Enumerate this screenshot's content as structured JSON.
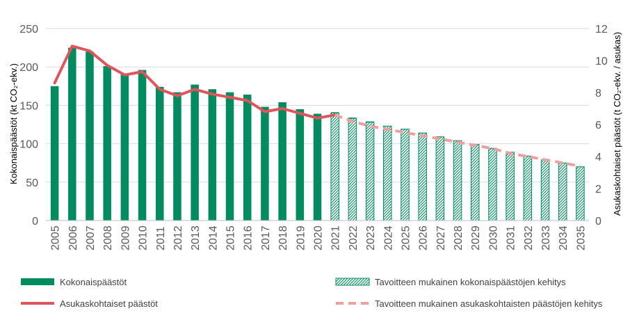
{
  "chart_data": {
    "type": "bar",
    "categories": [
      "2005",
      "2006",
      "2007",
      "2008",
      "2009",
      "2010",
      "2011",
      "2012",
      "2013",
      "2014",
      "2015",
      "2016",
      "2017",
      "2018",
      "2019",
      "2020",
      "2021",
      "2022",
      "2023",
      "2024",
      "2025",
      "2026",
      "2027",
      "2028",
      "2029",
      "2030",
      "2031",
      "2032",
      "2033",
      "2034",
      "2035"
    ],
    "y_left": {
      "label": "Kokonaispäästöt (kt CO₂-ekv.)",
      "min": 0,
      "max": 250,
      "ticks": [
        "0",
        "50",
        "100",
        "150",
        "200",
        "250"
      ]
    },
    "y_right": {
      "label": "Asukaskohtaiset päästöt (t CO₂-ekv. / asukas)",
      "min": 0,
      "max": 12,
      "ticks": [
        "0",
        "2",
        "4",
        "6",
        "8",
        "10",
        "12"
      ]
    },
    "series": [
      {
        "name": "Kokonaispäästöt",
        "kind": "bar",
        "axis": "left",
        "style": "solid",
        "color": "#008c5f",
        "values": [
          175,
          225,
          220,
          201,
          190,
          196,
          174,
          167,
          177,
          171,
          167,
          164,
          148,
          154,
          145,
          139,
          141,
          134,
          129,
          null,
          null,
          null,
          null,
          null,
          null,
          null,
          null,
          null,
          null,
          null,
          null
        ]
      },
      {
        "name": "Tavoitteen mukainen kokonaispäästöjen kehitys",
        "kind": "bar",
        "axis": "left",
        "style": "hatched",
        "color": "#008c5f",
        "values": [
          null,
          null,
          null,
          null,
          null,
          null,
          null,
          null,
          null,
          null,
          null,
          null,
          null,
          null,
          null,
          null,
          140,
          133,
          128,
          123,
          119,
          114,
          109,
          104,
          99,
          94,
          89,
          84,
          79,
          75,
          70
        ]
      },
      {
        "name": "Asukaskohtaiset päästöt",
        "kind": "line",
        "axis": "right",
        "style": "solid",
        "color": "#e0555a",
        "values": [
          8.6,
          10.9,
          10.6,
          9.7,
          9.1,
          9.3,
          8.2,
          7.8,
          8.2,
          7.9,
          7.7,
          7.5,
          6.8,
          7.0,
          6.7,
          6.4,
          6.6,
          null,
          null,
          null,
          null,
          null,
          null,
          null,
          null,
          null,
          null,
          null,
          null,
          null,
          null
        ]
      },
      {
        "name": "Tavoitteen mukainen asukaskohtaisten päästöjen kehitys",
        "kind": "line",
        "axis": "right",
        "style": "dashed",
        "color": "#f19e9e",
        "values": [
          null,
          null,
          null,
          null,
          null,
          null,
          null,
          null,
          null,
          null,
          null,
          null,
          null,
          null,
          null,
          null,
          6.6,
          6.2,
          5.9,
          5.7,
          5.5,
          5.3,
          5.1,
          4.9,
          4.7,
          4.5,
          4.2,
          4.0,
          3.8,
          3.6,
          3.4
        ]
      }
    ],
    "legend": [
      {
        "label": "Kokonaispäästöt",
        "symbol": "bar-solid"
      },
      {
        "label": "Tavoitteen mukainen kokonaispäästöjen kehitys",
        "symbol": "bar-hatched"
      },
      {
        "label": "Asukaskohtaiset päästöt",
        "symbol": "line-solid"
      },
      {
        "label": "Tavoitteen mukainen asukaskohtaisten päästöjen kehitys",
        "symbol": "line-dashed"
      }
    ],
    "grid": true,
    "legend_position": "bottom"
  }
}
